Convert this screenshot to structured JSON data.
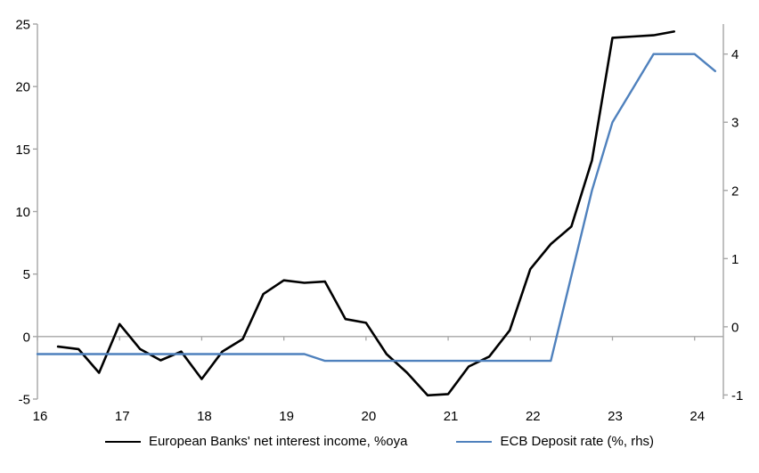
{
  "chart_data": {
    "type": "line",
    "title": "",
    "xlabel": "",
    "ylabel_left": "",
    "ylabel_right": "",
    "grid": "zero-line-only",
    "legend_position": "bottom-center",
    "axis_color": "#a6a6a6",
    "x_axis": {
      "min": 16,
      "max": 24.35,
      "ticks": [
        16,
        17,
        18,
        19,
        20,
        21,
        22,
        23,
        24
      ]
    },
    "left_axis": {
      "min": -5,
      "max": 25,
      "ticks": [
        -5,
        0,
        5,
        10,
        15,
        20,
        25
      ]
    },
    "right_axis": {
      "min": -1.06,
      "max": 4.44,
      "ticks": [
        -1,
        0,
        1,
        2,
        3,
        4
      ]
    },
    "series": [
      {
        "name": "European Banks' net interest income, %oya",
        "axis": "left",
        "color": "#000000",
        "x": [
          16.25,
          16.5,
          16.75,
          17.0,
          17.25,
          17.5,
          17.75,
          18.0,
          18.25,
          18.5,
          18.75,
          19.0,
          19.25,
          19.5,
          19.75,
          20.0,
          20.25,
          20.5,
          20.75,
          21.0,
          21.25,
          21.5,
          21.75,
          22.0,
          22.25,
          22.5,
          22.75,
          23.0,
          23.25,
          23.5,
          23.75
        ],
        "values": [
          -0.8,
          -1.0,
          -2.9,
          1.0,
          -1.0,
          -1.9,
          -1.2,
          -3.4,
          -1.2,
          -0.2,
          3.4,
          4.5,
          4.3,
          4.4,
          1.4,
          1.1,
          -1.4,
          -2.9,
          -4.7,
          -4.6,
          -2.4,
          -1.6,
          0.5,
          5.4,
          7.4,
          8.8,
          14.1,
          23.9,
          24.0,
          24.1,
          24.4
        ]
      },
      {
        "name": "ECB Deposit rate (%, rhs)",
        "axis": "right",
        "color": "#4f81bd",
        "x": [
          16.0,
          16.25,
          16.5,
          16.75,
          17.0,
          17.25,
          17.5,
          17.75,
          18.0,
          18.25,
          18.5,
          18.75,
          19.0,
          19.25,
          19.5,
          19.75,
          20.0,
          20.25,
          20.5,
          20.75,
          21.0,
          21.25,
          21.5,
          21.75,
          22.0,
          22.25,
          22.5,
          22.75,
          23.0,
          23.25,
          23.5,
          23.75,
          24.0,
          24.25
        ],
        "values": [
          -0.4,
          -0.4,
          -0.4,
          -0.4,
          -0.4,
          -0.4,
          -0.4,
          -0.4,
          -0.4,
          -0.4,
          -0.4,
          -0.4,
          -0.4,
          -0.4,
          -0.5,
          -0.5,
          -0.5,
          -0.5,
          -0.5,
          -0.5,
          -0.5,
          -0.5,
          -0.5,
          -0.5,
          -0.5,
          -0.5,
          0.75,
          2.0,
          3.0,
          3.5,
          4.0,
          4.0,
          4.0,
          3.75
        ]
      }
    ]
  }
}
